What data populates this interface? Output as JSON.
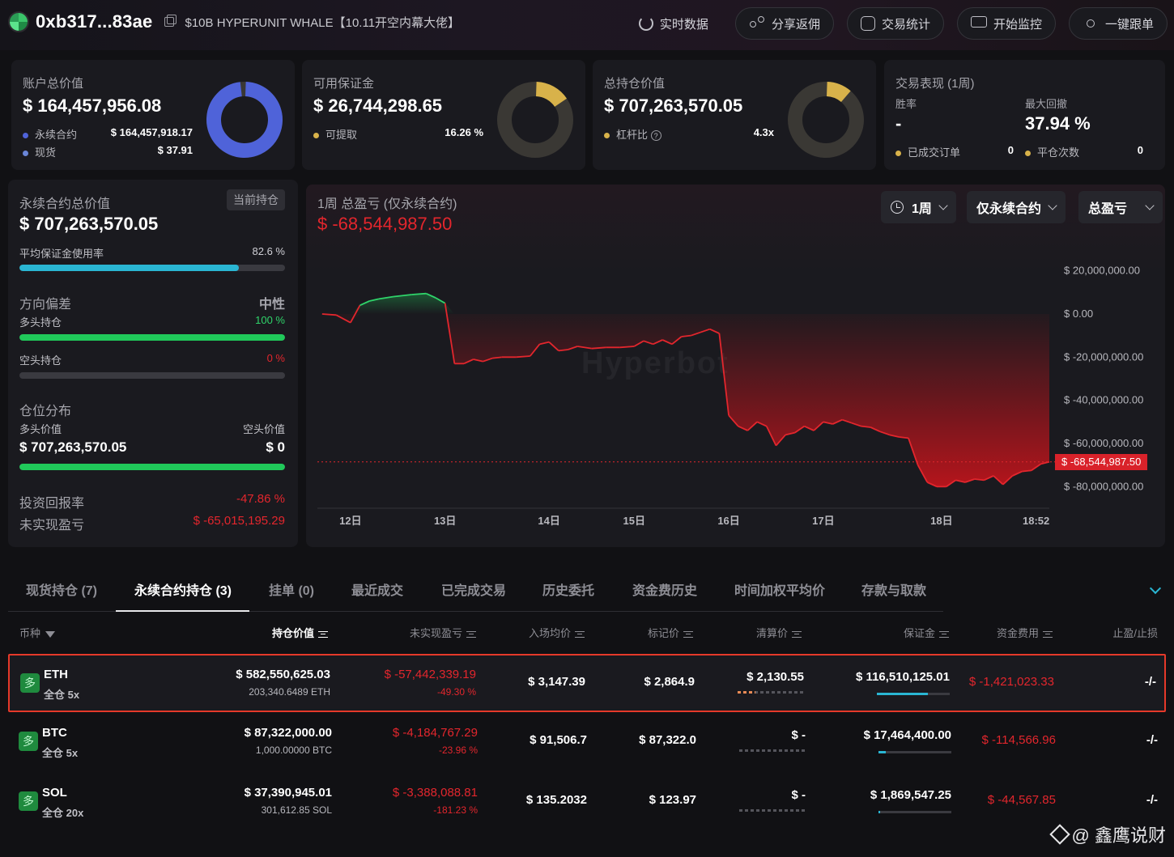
{
  "header": {
    "address": "0xb317...83ae",
    "wallet_name": "$10B HYPERUNIT WHALE【10.11开空内幕大佬】",
    "buttons": [
      {
        "label": "实时数据",
        "icon": "refresh-icon"
      },
      {
        "label": "分享返佣",
        "icon": "share-icon"
      },
      {
        "label": "交易统计",
        "icon": "stats-icon"
      },
      {
        "label": "开始监控",
        "icon": "monitor-icon"
      },
      {
        "label": "一键跟单",
        "icon": "follow-icon"
      }
    ]
  },
  "summary": {
    "account": {
      "label": "账户总价值",
      "value": "$ 164,457,956.08",
      "rows": [
        {
          "name": "永续合约",
          "value": "$ 164,457,918.17"
        },
        {
          "name": "现货",
          "value": "$ 37.91"
        }
      ],
      "donut_fraction": 1.0,
      "color": "#4f63d9"
    },
    "margin": {
      "label": "可用保证金",
      "value": "$ 26,744,298.65",
      "row": {
        "name": "可提取",
        "value": "16.26 %"
      },
      "donut_fraction": 0.1626,
      "color": "#d8b24a"
    },
    "position": {
      "label": "总持仓价值",
      "value": "$ 707,263,570.05",
      "row": {
        "name": "杠杆比",
        "value": "4.3x"
      },
      "donut_fraction": 0.12,
      "color": "#d8b24a"
    },
    "performance": {
      "label": "交易表现 (1周)",
      "win_rate_label": "胜率",
      "win_rate": "-",
      "max_dd_label": "最大回撤",
      "max_dd": "37.94 %",
      "closed_orders_label": "已成交订单",
      "closed_orders": "0",
      "close_count_label": "平仓次数",
      "close_count": "0"
    }
  },
  "left_panel": {
    "title": "永续合约总价值",
    "badge": "当前持仓",
    "value": "$ 707,263,570.05",
    "margin_usage_label": "平均保证金使用率",
    "margin_usage": "82.6 %",
    "margin_usage_fraction": 0.826,
    "bias_label": "方向偏差",
    "bias_value": "中性",
    "long_label": "多头持仓",
    "long_pct": "100 %",
    "long_fraction": 1.0,
    "short_label": "空头持仓",
    "short_pct": "0 %",
    "short_fraction": 0.0,
    "dist_label": "仓位分布",
    "long_value_label": "多头价值",
    "short_value_label": "空头价值",
    "long_value": "$ 707,263,570.05",
    "short_value": "$ 0",
    "roi_label": "投资回报率",
    "roi": "-47.86 %",
    "upnl_label": "未实现盈亏",
    "upnl": "$ -65,015,195.29"
  },
  "chart_panel": {
    "title": "1周 总盈亏 (仅永续合约)",
    "value": "$ -68,544,987.50",
    "dropdowns": [
      "1周",
      "仅永续合约",
      "总盈亏"
    ],
    "watermark": "Hyperbot",
    "current_label": "$ -68,544,987.50"
  },
  "chart_data": {
    "type": "area",
    "title": "1周 总盈亏 (仅永续合约)",
    "ylim": [
      -90000000,
      30000000
    ],
    "y_ticks": [
      20000000,
      0,
      -20000000,
      -40000000,
      -60000000,
      -80000000
    ],
    "y_tick_labels": [
      "$ 20,000,000.00",
      "$ 0.00",
      "$ -20,000,000.00",
      "$ -40,000,000.00",
      "$ -60,000,000.00",
      "$ -80,000,000.00"
    ],
    "x_ticks": [
      0.35,
      1.35,
      2.45,
      3.35,
      4.35,
      5.35,
      6.6,
      7.6
    ],
    "x_tick_labels": [
      "12日",
      "13日",
      "14日",
      "15日",
      "16日",
      "17日",
      "18日",
      "18:52"
    ],
    "xlim": [
      0,
      7.74
    ],
    "current_value": -68544987.5,
    "series": [
      {
        "x": [
          0.05,
          0.2,
          0.35,
          0.45,
          0.55,
          0.65,
          0.8,
          1.0,
          1.15,
          1.25,
          1.35,
          1.45,
          1.55,
          1.65,
          1.75,
          1.85,
          1.95,
          2.1,
          2.25,
          2.35,
          2.45,
          2.55,
          2.65,
          2.75,
          2.9,
          3.05,
          3.2,
          3.35,
          3.45,
          3.55,
          3.65,
          3.75,
          3.85,
          3.95,
          4.05,
          4.15,
          4.25,
          4.35,
          4.45,
          4.55,
          4.65,
          4.75,
          4.85,
          4.95,
          5.05,
          5.15,
          5.25,
          5.35,
          5.45,
          5.55,
          5.65,
          5.75,
          5.85,
          5.95,
          6.05,
          6.15,
          6.25,
          6.35,
          6.45,
          6.55,
          6.65,
          6.75,
          6.85,
          6.95,
          7.05,
          7.15,
          7.25,
          7.35,
          7.45,
          7.55,
          7.65,
          7.74
        ],
        "y": [
          0,
          -500000,
          -4000000,
          4000000,
          6000000,
          7000000,
          8000000,
          9000000,
          9500000,
          7500000,
          5000000,
          -23000000,
          -23000000,
          -21000000,
          -22000000,
          -20500000,
          -20000000,
          -20000000,
          -19500000,
          -14000000,
          -13000000,
          -17000000,
          -16500000,
          -15000000,
          -16000000,
          -15500000,
          -15500000,
          -15000000,
          -12500000,
          -14000000,
          -12000000,
          -14000000,
          -10500000,
          -10000000,
          -8500000,
          -7000000,
          -9000000,
          -47000000,
          -52000000,
          -54000000,
          -50000000,
          -52000000,
          -61000000,
          -56000000,
          -55000000,
          -52000000,
          -54000000,
          -50000000,
          -51000000,
          -49000000,
          -50500000,
          -52000000,
          -52500000,
          -54500000,
          -56000000,
          -57000000,
          -57500000,
          -70000000,
          -78000000,
          -80000000,
          -80000000,
          -77000000,
          -78000000,
          -76500000,
          -77000000,
          -75000000,
          -79000000,
          -75000000,
          -73000000,
          -72500000,
          -69500000,
          -68544987.5
        ]
      }
    ]
  },
  "tabs": [
    "现货持仓 (7)",
    "永续合约持仓 (3)",
    "挂单 (0)",
    "最近成交",
    "已完成交易",
    "历史委托",
    "资金费历史",
    "时间加权平均价",
    "存款与取款"
  ],
  "table": {
    "headers": [
      "币种",
      "持仓价值",
      "未实现盈亏",
      "入场均价",
      "标记价",
      "清算价",
      "保证金",
      "资金费用",
      "止盈/止损"
    ],
    "rows": [
      {
        "side": "多",
        "symbol": "ETH",
        "leverage": "全仓 5x",
        "value": "$ 582,550,625.03",
        "size": "203,340.6489 ETH",
        "upnl": "$ -57,442,339.19",
        "upnl_pct": "-49.30 %",
        "entry": "$ 3,147.39",
        "mark": "$ 2,864.9",
        "liq": "$ 2,130.55",
        "liq_risk_fraction": 0.27,
        "margin": "$ 116,510,125.01",
        "margin_fraction": 0.7,
        "funding": "$ -1,421,023.33",
        "tpsl": "-/-"
      },
      {
        "side": "多",
        "symbol": "BTC",
        "leverage": "全仓 5x",
        "value": "$ 87,322,000.00",
        "size": "1,000.00000 BTC",
        "upnl": "$ -4,184,767.29",
        "upnl_pct": "-23.96 %",
        "entry": "$ 91,506.7",
        "mark": "$ 87,322.0",
        "liq": "$ -",
        "liq_risk_fraction": 0.0,
        "margin": "$ 17,464,400.00",
        "margin_fraction": 0.1,
        "funding": "$ -114,566.96",
        "tpsl": "-/-"
      },
      {
        "side": "多",
        "symbol": "SOL",
        "leverage": "全仓 20x",
        "value": "$ 37,390,945.01",
        "size": "301,612.85 SOL",
        "upnl": "$ -3,388,088.81",
        "upnl_pct": "-181.23 %",
        "entry": "$ 135.2032",
        "mark": "$ 123.97",
        "liq": "$ -",
        "liq_risk_fraction": 0.0,
        "margin": "$ 1,869,547.25",
        "margin_fraction": 0.02,
        "funding": "$ -44,567.85",
        "tpsl": "-/-"
      }
    ]
  },
  "watermark_text": "@ 鑫鹰说财"
}
